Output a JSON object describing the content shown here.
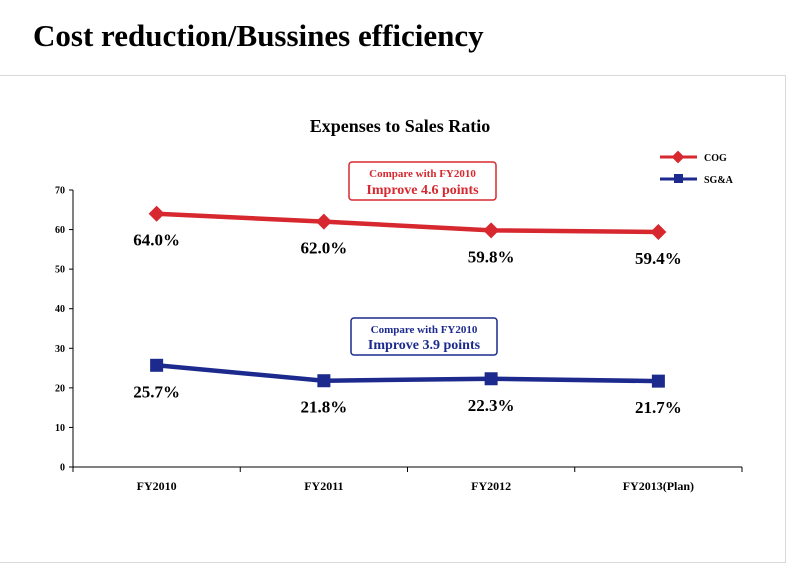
{
  "slide": {
    "title": "Cost reduction/Bussines efficiency"
  },
  "chart_data": {
    "type": "line",
    "title": "Expenses to Sales Ratio",
    "categories": [
      "FY2010",
      "FY2011",
      "FY2012",
      "FY2013(Plan)"
    ],
    "ylim": [
      0,
      70
    ],
    "yticks": [
      "0",
      "10",
      "20",
      "30",
      "40",
      "50",
      "60",
      "70"
    ],
    "ytick_values": [
      0,
      10,
      20,
      30,
      40,
      50,
      60,
      70
    ],
    "grid": false,
    "legend_position": "top-right",
    "series": [
      {
        "name": "COG",
        "color": "#d7282f",
        "marker": "diamond",
        "values": [
          64.0,
          62.0,
          59.8,
          59.4
        ],
        "labels": [
          "64.0%",
          "62.0%",
          "59.8%",
          "59.4%"
        ]
      },
      {
        "name": "SG&A",
        "color": "#1c2a8e",
        "marker": "square",
        "values": [
          25.7,
          21.8,
          22.3,
          21.7
        ],
        "labels": [
          "25.7%",
          "21.8%",
          "22.3%",
          "21.7%"
        ]
      }
    ],
    "annotations": [
      {
        "series": "COG",
        "line1": "Compare with FY2010",
        "line2": "Improve 4.6 points"
      },
      {
        "series": "SG&A",
        "line1": "Compare with FY2010",
        "line2": "Improve 3.9 points"
      }
    ]
  }
}
